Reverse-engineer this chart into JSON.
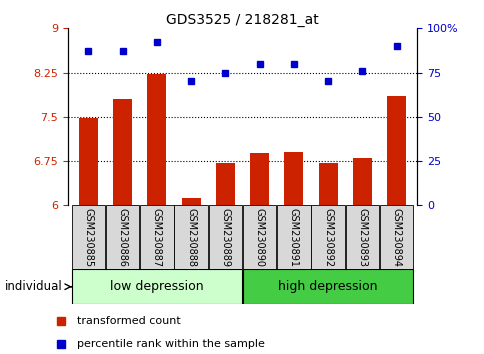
{
  "title": "GDS3525 / 218281_at",
  "samples": [
    "GSM230885",
    "GSM230886",
    "GSM230887",
    "GSM230888",
    "GSM230889",
    "GSM230890",
    "GSM230891",
    "GSM230892",
    "GSM230893",
    "GSM230894"
  ],
  "bar_values": [
    7.48,
    7.8,
    8.22,
    6.12,
    6.72,
    6.88,
    6.9,
    6.72,
    6.8,
    7.85
  ],
  "dot_values": [
    87,
    87,
    92,
    70,
    75,
    80,
    80,
    70,
    76,
    90
  ],
  "bar_color": "#cc2200",
  "dot_color": "#0000cc",
  "ylim_left": [
    6,
    9
  ],
  "ylim_right": [
    0,
    100
  ],
  "yticks_left": [
    6,
    6.75,
    7.5,
    8.25,
    9
  ],
  "ytick_labels_left": [
    "6",
    "6.75",
    "7.5",
    "8.25",
    "9"
  ],
  "yticks_right": [
    0,
    25,
    50,
    75,
    100
  ],
  "ytick_labels_right": [
    "0",
    "25",
    "50",
    "75",
    "100%"
  ],
  "hlines": [
    6.75,
    7.5,
    8.25
  ],
  "group1_label": "low depression",
  "group2_label": "high depression",
  "group1_count": 5,
  "group2_count": 5,
  "group1_color": "#ccffcc",
  "group2_color": "#44cc44",
  "individual_label": "individual",
  "legend_bar_label": "transformed count",
  "legend_dot_label": "percentile rank within the sample",
  "bar_base": 6,
  "bg_color": "#d8d8d8"
}
